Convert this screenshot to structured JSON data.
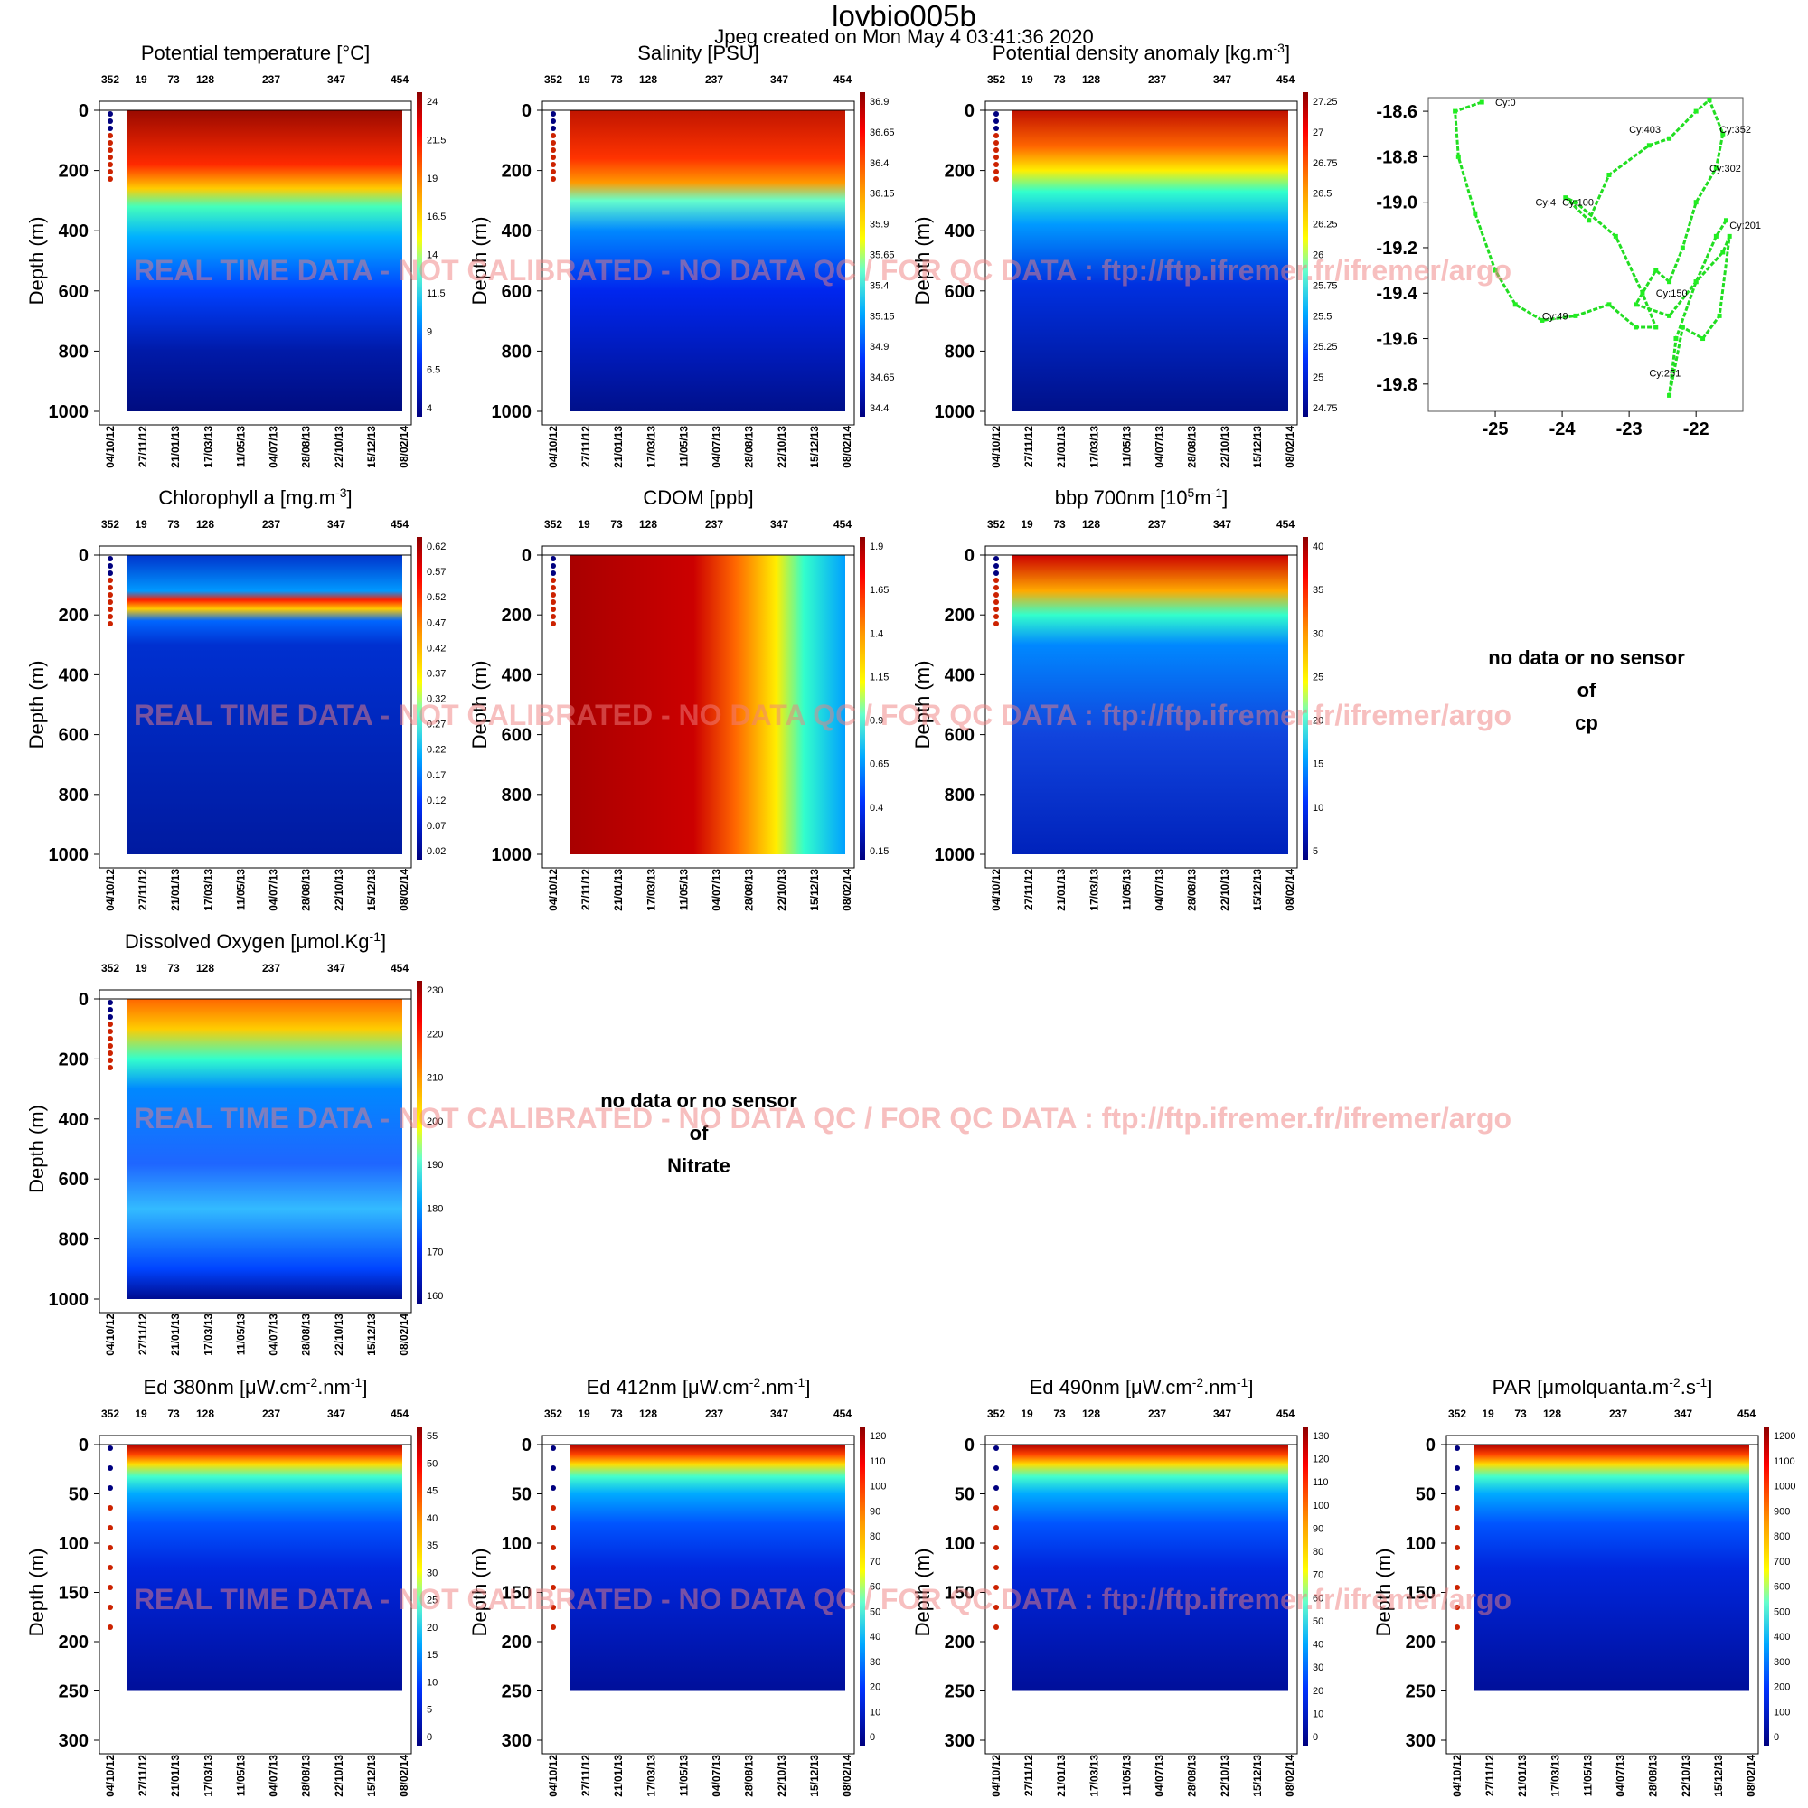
{
  "title": "lovbio005b",
  "subtitle": "Jpeg created on  Mon May  4 03:41:36 2020",
  "watermark": "REAL TIME DATA - NOT CALIBRATED - NO DATA QC   /  FOR QC DATA : ftp://ftp.ifremer.fr/ifremer/argo",
  "y_axis_label": "Depth (m)",
  "cycle_ticks": [
    "352",
    "19",
    "73",
    "128",
    "237",
    "347",
    "454"
  ],
  "date_ticks": [
    "04/10/12",
    "27/11/12",
    "21/01/13",
    "17/03/13",
    "11/05/13",
    "04/07/13",
    "28/08/13",
    "22/10/13",
    "15/12/13",
    "08/02/14"
  ],
  "no_data_panels": [
    {
      "lines": [
        "no data or no sensor",
        "of",
        "cp"
      ]
    },
    {
      "lines": [
        "no data or no sensor",
        "of",
        "Nitrate"
      ]
    }
  ],
  "chart_data": [
    {
      "type": "heatmap",
      "title": "Potential temperature [°C]",
      "ylabel": "Depth (m)",
      "ylim": [
        1000,
        0
      ],
      "yticks": [
        "0",
        "200",
        "400",
        "600",
        "800",
        "1000"
      ],
      "colorbar": [
        "24",
        "21.5",
        "19",
        "16.5",
        "14",
        "11.5",
        "9",
        "6.5",
        "4"
      ]
    },
    {
      "type": "heatmap",
      "title": "Salinity [PSU]",
      "ylabel": "Depth (m)",
      "ylim": [
        1000,
        0
      ],
      "yticks": [
        "0",
        "200",
        "400",
        "600",
        "800",
        "1000"
      ],
      "colorbar": [
        "36.9",
        "36.65",
        "36.4",
        "36.15",
        "35.9",
        "35.65",
        "35.4",
        "35.15",
        "34.9",
        "34.65",
        "34.4"
      ]
    },
    {
      "type": "heatmap",
      "title": "Potential density anomaly [kg.m^-3]",
      "ylabel": "Depth (m)",
      "ylim": [
        1000,
        0
      ],
      "yticks": [
        "0",
        "200",
        "400",
        "600",
        "800",
        "1000"
      ],
      "colorbar": [
        "27.25",
        "27",
        "26.75",
        "26.5",
        "26.25",
        "26",
        "25.75",
        "25.5",
        "25.25",
        "25",
        "24.75"
      ]
    },
    {
      "type": "scatter",
      "title": "",
      "xticks": [
        "-25",
        "-24",
        "-23",
        "-22"
      ],
      "yticks": [
        "-18.6",
        "-18.8",
        "-19.0",
        "-19.2",
        "-19.4",
        "-19.6",
        "-19.8"
      ],
      "xlim": [
        -26.0,
        -21.3
      ],
      "ylim": [
        -19.92,
        -18.54
      ],
      "trajectory_lon": [
        -25.2,
        -25.6,
        -25.55,
        -25.3,
        -25.0,
        -24.7,
        -24.3,
        -23.8,
        -23.3,
        -22.9,
        -22.6,
        -22.8,
        -23.2,
        -23.8,
        -23.95,
        -23.6,
        -23.3,
        -22.7,
        -22.4,
        -22.0,
        -21.8,
        -21.6,
        -21.7,
        -22.0,
        -22.2,
        -22.4,
        -22.6,
        -22.9,
        -22.4,
        -22.0,
        -21.6,
        -21.5,
        -21.65,
        -21.9,
        -22.2,
        -22.4,
        -22.3,
        -22.0,
        -21.7,
        -21.55
      ],
      "trajectory_lat": [
        -18.56,
        -18.6,
        -18.8,
        -19.05,
        -19.3,
        -19.45,
        -19.52,
        -19.5,
        -19.45,
        -19.55,
        -19.55,
        -19.4,
        -19.15,
        -19.0,
        -18.98,
        -19.08,
        -18.88,
        -18.75,
        -18.72,
        -18.6,
        -18.55,
        -18.7,
        -18.85,
        -19.0,
        -19.2,
        -19.35,
        -19.3,
        -19.45,
        -19.5,
        -19.35,
        -19.22,
        -19.15,
        -19.5,
        -19.6,
        -19.55,
        -19.85,
        -19.6,
        -19.35,
        -19.15,
        -19.08
      ],
      "cycle_labels": [
        {
          "label": "Cy:0",
          "lon": -25.0,
          "lat": -18.56
        },
        {
          "label": "Cy:49",
          "lon": -24.3,
          "lat": -19.5
        },
        {
          "label": "Cy:403",
          "lon": -23.0,
          "lat": -18.68
        },
        {
          "label": "Cy:352",
          "lon": -21.65,
          "lat": -18.68
        },
        {
          "label": "Cy:302",
          "lon": -21.8,
          "lat": -18.85
        },
        {
          "label": "Cy:4",
          "lon": -24.4,
          "lat": -19.0
        },
        {
          "label": "Cy:100",
          "lon": -24.0,
          "lat": -19.0
        },
        {
          "label": "Cy:201",
          "lon": -21.5,
          "lat": -19.1
        },
        {
          "label": "Cy:150",
          "lon": -22.6,
          "lat": -19.4
        },
        {
          "label": "Cy:251",
          "lon": -22.7,
          "lat": -19.75
        }
      ]
    },
    {
      "type": "heatmap",
      "title": "Chlorophyll a [mg.m^-3]",
      "ylabel": "Depth (m)",
      "ylim": [
        1000,
        0
      ],
      "yticks": [
        "0",
        "200",
        "400",
        "600",
        "800",
        "1000"
      ],
      "colorbar": [
        "0.62",
        "0.57",
        "0.52",
        "0.47",
        "0.42",
        "0.37",
        "0.32",
        "0.27",
        "0.22",
        "0.17",
        "0.12",
        "0.07",
        "0.02"
      ]
    },
    {
      "type": "heatmap",
      "title": "CDOM  [ppb]",
      "ylabel": "Depth (m)",
      "ylim": [
        1000,
        0
      ],
      "yticks": [
        "0",
        "200",
        "400",
        "600",
        "800",
        "1000"
      ],
      "colorbar": [
        "1.9",
        "1.65",
        "1.4",
        "1.15",
        "0.9",
        "0.65",
        "0.4",
        "0.15"
      ]
    },
    {
      "type": "heatmap",
      "title": "bbp 700nm [10^5m^-1]",
      "ylabel": "Depth (m)",
      "ylim": [
        1000,
        0
      ],
      "yticks": [
        "0",
        "200",
        "400",
        "600",
        "800",
        "1000"
      ],
      "colorbar": [
        "40",
        "35",
        "30",
        "25",
        "20",
        "15",
        "10",
        "5"
      ]
    },
    {
      "type": "heatmap",
      "title": "Dissolved Oxygen [μmol.Kg^-1]",
      "ylabel": "Depth (m)",
      "ylim": [
        1000,
        0
      ],
      "yticks": [
        "0",
        "200",
        "400",
        "600",
        "800",
        "1000"
      ],
      "colorbar": [
        "230",
        "220",
        "210",
        "200",
        "190",
        "180",
        "170",
        "160"
      ]
    },
    {
      "type": "heatmap",
      "title": "Ed 380nm [μW.cm^-2.nm^-1]",
      "ylabel": "Depth (m)",
      "ylim": [
        300,
        0
      ],
      "yticks": [
        "0",
        "50",
        "100",
        "150",
        "200",
        "250",
        "300"
      ],
      "colorbar": [
        "55",
        "50",
        "45",
        "40",
        "35",
        "30",
        "25",
        "20",
        "15",
        "10",
        "5",
        "0"
      ]
    },
    {
      "type": "heatmap",
      "title": "Ed 412nm [μW.cm^-2.nm^-1]",
      "ylabel": "Depth (m)",
      "ylim": [
        300,
        0
      ],
      "yticks": [
        "0",
        "50",
        "100",
        "150",
        "200",
        "250",
        "300"
      ],
      "colorbar": [
        "120",
        "110",
        "100",
        "90",
        "80",
        "70",
        "60",
        "50",
        "40",
        "30",
        "20",
        "10",
        "0"
      ]
    },
    {
      "type": "heatmap",
      "title": "Ed 490nm [μW.cm^-2.nm^-1]",
      "ylabel": "Depth (m)",
      "ylim": [
        300,
        0
      ],
      "yticks": [
        "0",
        "50",
        "100",
        "150",
        "200",
        "250",
        "300"
      ],
      "colorbar": [
        "130",
        "120",
        "110",
        "100",
        "90",
        "80",
        "70",
        "60",
        "50",
        "40",
        "30",
        "20",
        "10",
        "0"
      ]
    },
    {
      "type": "heatmap",
      "title": "PAR [μmolquanta.m^-2.s^-1]",
      "ylabel": "Depth (m)",
      "ylim": [
        300,
        0
      ],
      "yticks": [
        "0",
        "50",
        "100",
        "150",
        "200",
        "250",
        "300"
      ],
      "colorbar": [
        "1200",
        "1100",
        "1000",
        "900",
        "800",
        "700",
        "600",
        "500",
        "400",
        "300",
        "200",
        "100",
        "0"
      ]
    }
  ]
}
